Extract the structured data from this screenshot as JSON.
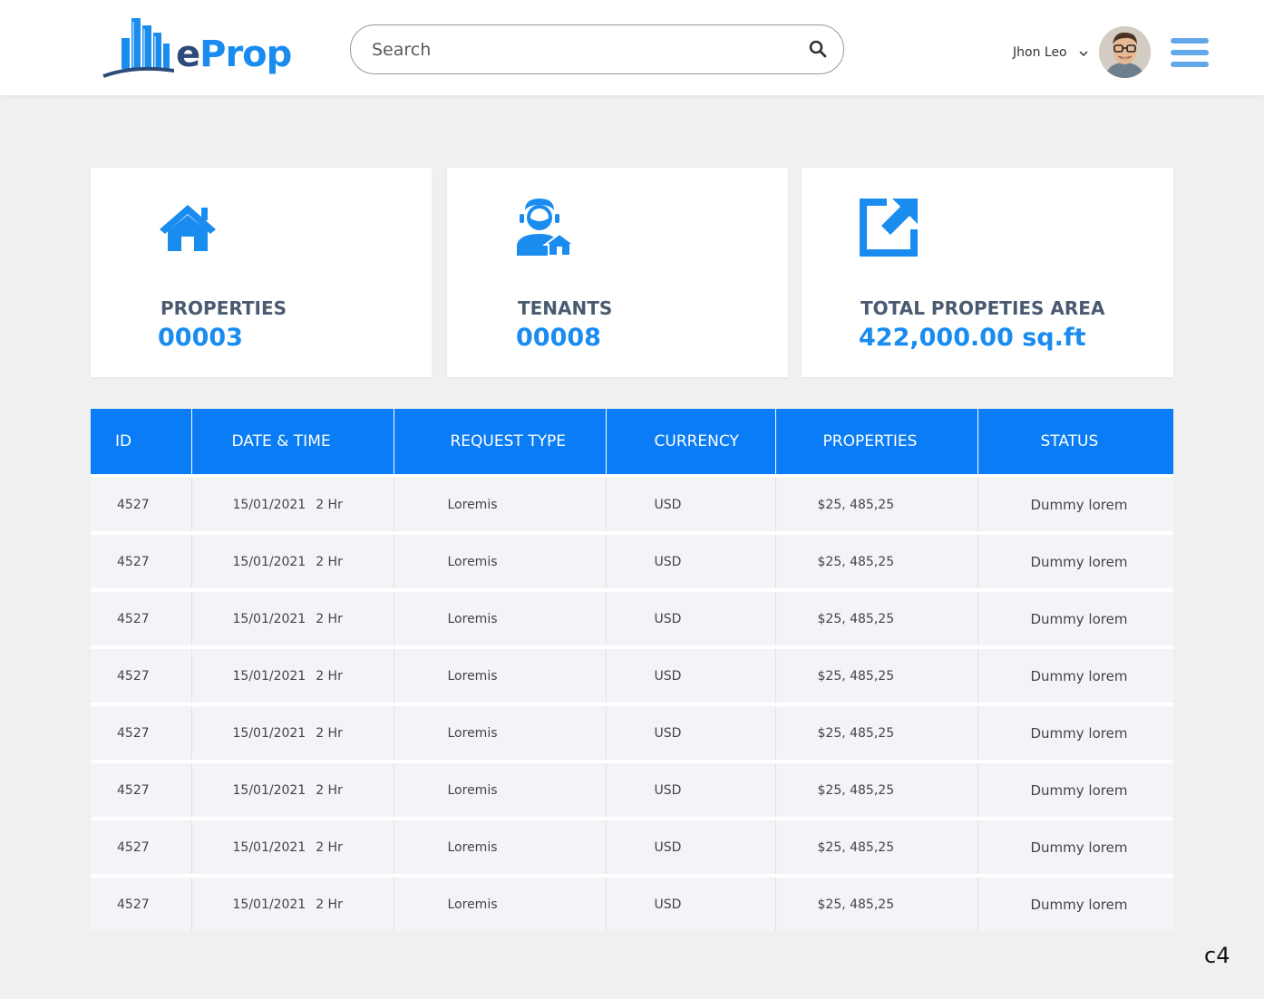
{
  "header": {
    "logo_e": "e",
    "logo_prop": "Prop",
    "search_placeholder": "Search",
    "user_name": "Jhon Leo"
  },
  "colors": {
    "accent": "#0a7cf5",
    "brand_dark": "#2d4a7a",
    "label": "#4a5a70"
  },
  "icons": [
    "search-icon",
    "chevron-down-icon",
    "hamburger-menu-icon",
    "house-icon",
    "tenant-icon",
    "external-link-icon"
  ],
  "stats": [
    {
      "label": "PROPERTIES",
      "value": "00003"
    },
    {
      "label": "TENANTS",
      "value": "00008"
    },
    {
      "label": "TOTAL PROPETIES AREA",
      "value": "422,000.00 sq.ft"
    }
  ],
  "table": {
    "columns": [
      "ID",
      "DATE & TIME",
      "REQUEST TYPE",
      "CURRENCY",
      "PROPERTIES",
      "STATUS"
    ],
    "rows": [
      {
        "id": "4527",
        "date": "15/01/2021",
        "time": "2 Hr",
        "type": "Loremis",
        "currency": "USD",
        "amount": "$25, 485,25",
        "status": "Dummy lorem"
      },
      {
        "id": "4527",
        "date": "15/01/2021",
        "time": "2 Hr",
        "type": "Loremis",
        "currency": "USD",
        "amount": "$25, 485,25",
        "status": "Dummy lorem"
      },
      {
        "id": "4527",
        "date": "15/01/2021",
        "time": "2 Hr",
        "type": "Loremis",
        "currency": "USD",
        "amount": "$25, 485,25",
        "status": "Dummy lorem"
      },
      {
        "id": "4527",
        "date": "15/01/2021",
        "time": "2 Hr",
        "type": "Loremis",
        "currency": "USD",
        "amount": "$25, 485,25",
        "status": "Dummy lorem"
      },
      {
        "id": "4527",
        "date": "15/01/2021",
        "time": "2 Hr",
        "type": "Loremis",
        "currency": "USD",
        "amount": "$25, 485,25",
        "status": "Dummy lorem"
      },
      {
        "id": "4527",
        "date": "15/01/2021",
        "time": "2 Hr",
        "type": "Loremis",
        "currency": "USD",
        "amount": "$25, 485,25",
        "status": "Dummy lorem"
      },
      {
        "id": "4527",
        "date": "15/01/2021",
        "time": "2 Hr",
        "type": "Loremis",
        "currency": "USD",
        "amount": "$25, 485,25",
        "status": "Dummy lorem"
      },
      {
        "id": "4527",
        "date": "15/01/2021",
        "time": "2 Hr",
        "type": "Loremis",
        "currency": "USD",
        "amount": "$25, 485,25",
        "status": "Dummy lorem"
      }
    ]
  },
  "watermark": "c4"
}
